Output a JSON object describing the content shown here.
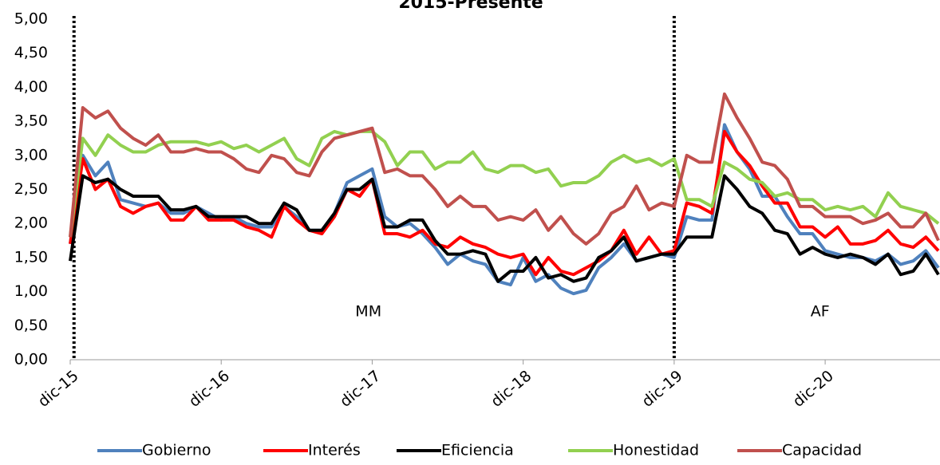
{
  "chart_data": {
    "type": "line",
    "title": "2015-Presente",
    "categories": [
      "dic-15",
      null,
      null,
      null,
      null,
      null,
      null,
      null,
      null,
      null,
      null,
      null,
      "dic-16",
      null,
      null,
      null,
      null,
      null,
      null,
      null,
      null,
      null,
      null,
      null,
      "dic-17",
      null,
      null,
      null,
      null,
      null,
      null,
      null,
      null,
      null,
      null,
      null,
      "dic-18",
      null,
      null,
      null,
      null,
      null,
      null,
      null,
      null,
      null,
      null,
      null,
      "dic-19",
      null,
      null,
      null,
      null,
      null,
      null,
      null,
      null,
      null,
      null,
      null,
      "dic-20",
      null,
      null,
      null,
      null,
      null,
      null,
      null,
      null,
      null
    ],
    "ylim": [
      0,
      5
    ],
    "yticks": [
      {
        "value": 0,
        "label": "0,00"
      },
      {
        "value": 0.5,
        "label": "0,50"
      },
      {
        "value": 1,
        "label": "1,00"
      },
      {
        "value": 1.5,
        "label": "1,50"
      },
      {
        "value": 2,
        "label": "2,00"
      },
      {
        "value": 2.5,
        "label": "2,50"
      },
      {
        "value": 3,
        "label": "3,00"
      },
      {
        "value": 3.5,
        "label": "3,50"
      },
      {
        "value": 4,
        "label": "4,00"
      },
      {
        "value": 4.5,
        "label": "4,50"
      },
      {
        "value": 5,
        "label": "5,00"
      }
    ],
    "grid": false,
    "legend": "bottom",
    "vlines": [
      0.3,
      48
    ],
    "annotations": [
      {
        "text": "MM",
        "x": 23.7,
        "y": 0.7
      },
      {
        "text": "AF",
        "x": 59.6,
        "y": 0.7
      }
    ],
    "series": [
      {
        "name": "Gobierno",
        "color": "#4f81bd",
        "values": [
          1.7,
          3.0,
          2.7,
          2.9,
          2.35,
          2.3,
          2.25,
          2.3,
          2.15,
          2.15,
          2.25,
          2.15,
          2.05,
          2.1,
          2.0,
          1.95,
          1.95,
          2.25,
          2.1,
          1.9,
          1.9,
          2.15,
          2.6,
          2.7,
          2.8,
          2.1,
          1.95,
          2.0,
          1.85,
          1.65,
          1.4,
          1.55,
          1.45,
          1.4,
          1.15,
          1.1,
          1.5,
          1.15,
          1.25,
          1.05,
          0.97,
          1.02,
          1.35,
          1.5,
          1.7,
          1.45,
          1.5,
          1.55,
          1.5,
          2.1,
          2.05,
          2.05,
          3.45,
          3.05,
          2.8,
          2.4,
          2.4,
          2.1,
          1.85,
          1.85,
          1.6,
          1.55,
          1.5,
          1.5,
          1.45,
          1.55,
          1.4,
          1.45,
          1.6,
          1.35
        ]
      },
      {
        "name": "Interés",
        "color": "#ff0000",
        "values": [
          1.7,
          2.95,
          2.5,
          2.65,
          2.25,
          2.15,
          2.25,
          2.3,
          2.05,
          2.05,
          2.25,
          2.05,
          2.05,
          2.05,
          1.95,
          1.9,
          1.8,
          2.25,
          2.05,
          1.9,
          1.85,
          2.1,
          2.5,
          2.4,
          2.65,
          1.85,
          1.85,
          1.8,
          1.9,
          1.7,
          1.65,
          1.8,
          1.7,
          1.65,
          1.55,
          1.5,
          1.55,
          1.25,
          1.5,
          1.3,
          1.25,
          1.35,
          1.45,
          1.6,
          1.9,
          1.55,
          1.8,
          1.55,
          1.6,
          2.3,
          2.25,
          2.15,
          3.35,
          3.05,
          2.85,
          2.55,
          2.3,
          2.3,
          1.95,
          1.95,
          1.8,
          1.95,
          1.7,
          1.7,
          1.75,
          1.9,
          1.7,
          1.65,
          1.8,
          1.6
        ]
      },
      {
        "name": "Eficiencia",
        "color": "#000000",
        "values": [
          1.45,
          2.7,
          2.6,
          2.65,
          2.5,
          2.4,
          2.4,
          2.4,
          2.2,
          2.2,
          2.25,
          2.1,
          2.1,
          2.1,
          2.1,
          2.0,
          2.0,
          2.3,
          2.2,
          1.9,
          1.9,
          2.15,
          2.5,
          2.5,
          2.65,
          1.95,
          1.95,
          2.05,
          2.05,
          1.75,
          1.55,
          1.55,
          1.6,
          1.55,
          1.15,
          1.3,
          1.3,
          1.5,
          1.2,
          1.25,
          1.15,
          1.2,
          1.5,
          1.6,
          1.8,
          1.45,
          1.5,
          1.55,
          1.55,
          1.8,
          1.8,
          1.8,
          2.7,
          2.5,
          2.25,
          2.15,
          1.9,
          1.85,
          1.55,
          1.65,
          1.55,
          1.5,
          1.55,
          1.5,
          1.4,
          1.55,
          1.25,
          1.3,
          1.55,
          1.25
        ]
      },
      {
        "name": "Honestidad",
        "color": "#92d050",
        "values": [
          1.8,
          3.25,
          3.0,
          3.3,
          3.15,
          3.05,
          3.05,
          3.15,
          3.2,
          3.2,
          3.2,
          3.15,
          3.2,
          3.1,
          3.15,
          3.05,
          3.15,
          3.25,
          2.95,
          2.85,
          3.25,
          3.35,
          3.3,
          3.35,
          3.35,
          3.2,
          2.85,
          3.05,
          3.05,
          2.8,
          2.9,
          2.9,
          3.05,
          2.8,
          2.75,
          2.85,
          2.85,
          2.75,
          2.8,
          2.55,
          2.6,
          2.6,
          2.7,
          2.9,
          3.0,
          2.9,
          2.95,
          2.85,
          2.95,
          2.35,
          2.35,
          2.25,
          2.9,
          2.8,
          2.65,
          2.6,
          2.4,
          2.45,
          2.35,
          2.35,
          2.2,
          2.25,
          2.2,
          2.25,
          2.1,
          2.45,
          2.25,
          2.2,
          2.15,
          2.0
        ]
      },
      {
        "name": "Capacidad",
        "color": "#c0504d",
        "values": [
          1.8,
          3.7,
          3.55,
          3.65,
          3.4,
          3.25,
          3.15,
          3.3,
          3.05,
          3.05,
          3.1,
          3.05,
          3.05,
          2.95,
          2.8,
          2.75,
          3.0,
          2.95,
          2.75,
          2.7,
          3.05,
          3.25,
          3.3,
          3.35,
          3.4,
          2.75,
          2.8,
          2.7,
          2.7,
          2.5,
          2.25,
          2.4,
          2.25,
          2.25,
          2.05,
          2.1,
          2.05,
          2.2,
          1.9,
          2.1,
          1.85,
          1.7,
          1.85,
          2.15,
          2.25,
          2.55,
          2.2,
          2.3,
          2.25,
          3.0,
          2.9,
          2.9,
          3.9,
          3.55,
          3.25,
          2.9,
          2.85,
          2.65,
          2.25,
          2.25,
          2.1,
          2.1,
          2.1,
          2.0,
          2.05,
          2.15,
          1.95,
          1.95,
          2.15,
          1.75
        ]
      }
    ]
  }
}
